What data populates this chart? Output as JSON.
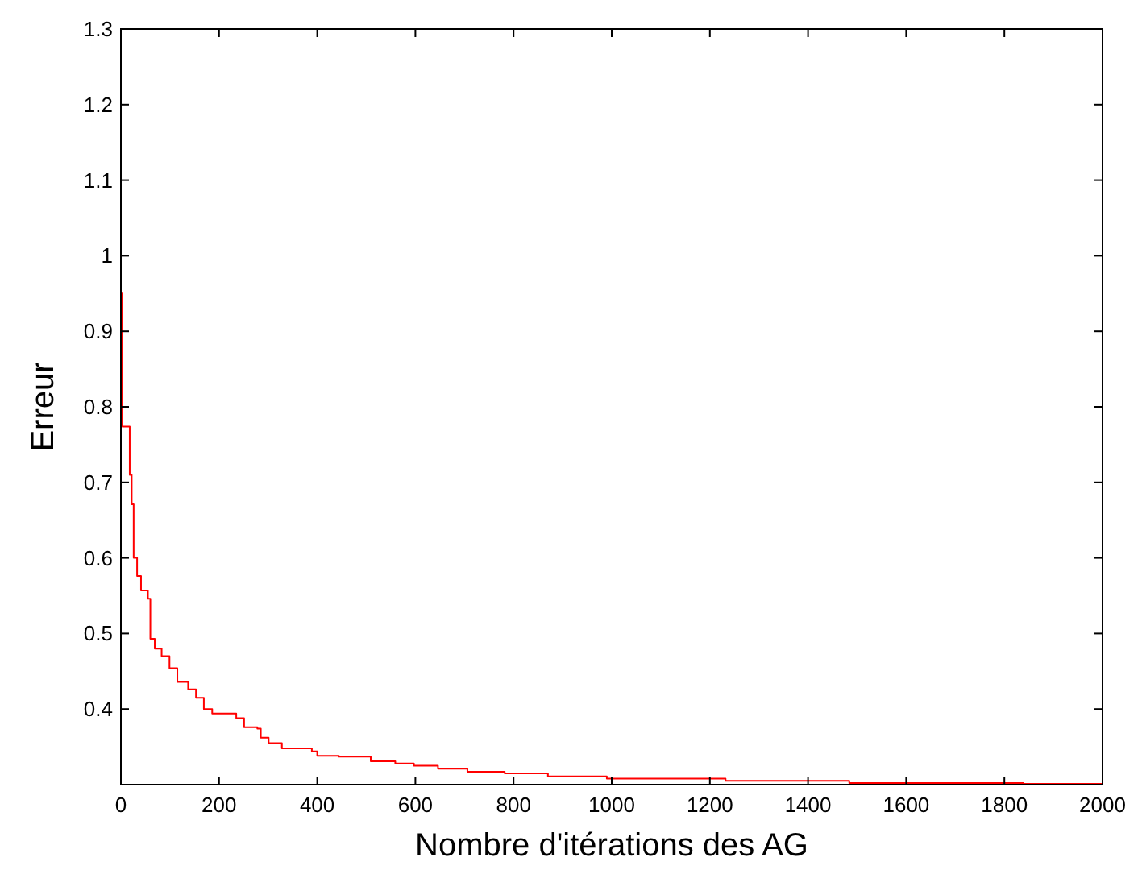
{
  "chart_data": {
    "type": "step",
    "xlabel": "Nombre d'itérations des AG",
    "ylabel": "Erreur",
    "x": [
      0,
      3,
      18,
      22,
      26,
      33,
      41,
      55,
      60,
      69,
      83,
      99,
      115,
      137,
      153,
      169,
      186,
      235,
      251,
      278,
      285,
      301,
      328,
      389,
      400,
      444,
      509,
      559,
      597,
      646,
      706,
      782,
      870,
      990,
      1232,
      1484,
      1839,
      2000
    ],
    "series": [
      {
        "color": "#ff0000",
        "values": [
          0.95,
          0.774,
          0.71,
          0.671,
          0.6,
          0.576,
          0.557,
          0.546,
          0.493,
          0.48,
          0.47,
          0.454,
          0.436,
          0.426,
          0.415,
          0.4,
          0.394,
          0.388,
          0.376,
          0.374,
          0.362,
          0.355,
          0.348,
          0.344,
          0.338,
          0.337,
          0.331,
          0.328,
          0.325,
          0.321,
          0.317,
          0.315,
          0.311,
          0.308,
          0.305,
          0.302,
          0.301,
          0.301
        ]
      }
    ],
    "xlim": [
      0,
      2000
    ],
    "ylim": [
      0.3,
      1.3
    ],
    "xticks": [
      0,
      200,
      400,
      600,
      800,
      1000,
      1200,
      1400,
      1600,
      1800,
      2000
    ],
    "yticks": [
      0.4,
      0.5,
      0.6,
      0.7,
      0.8,
      0.9,
      1,
      1.1,
      1.2,
      1.3
    ],
    "grid": false,
    "marker": "none",
    "line_style": "solid"
  }
}
